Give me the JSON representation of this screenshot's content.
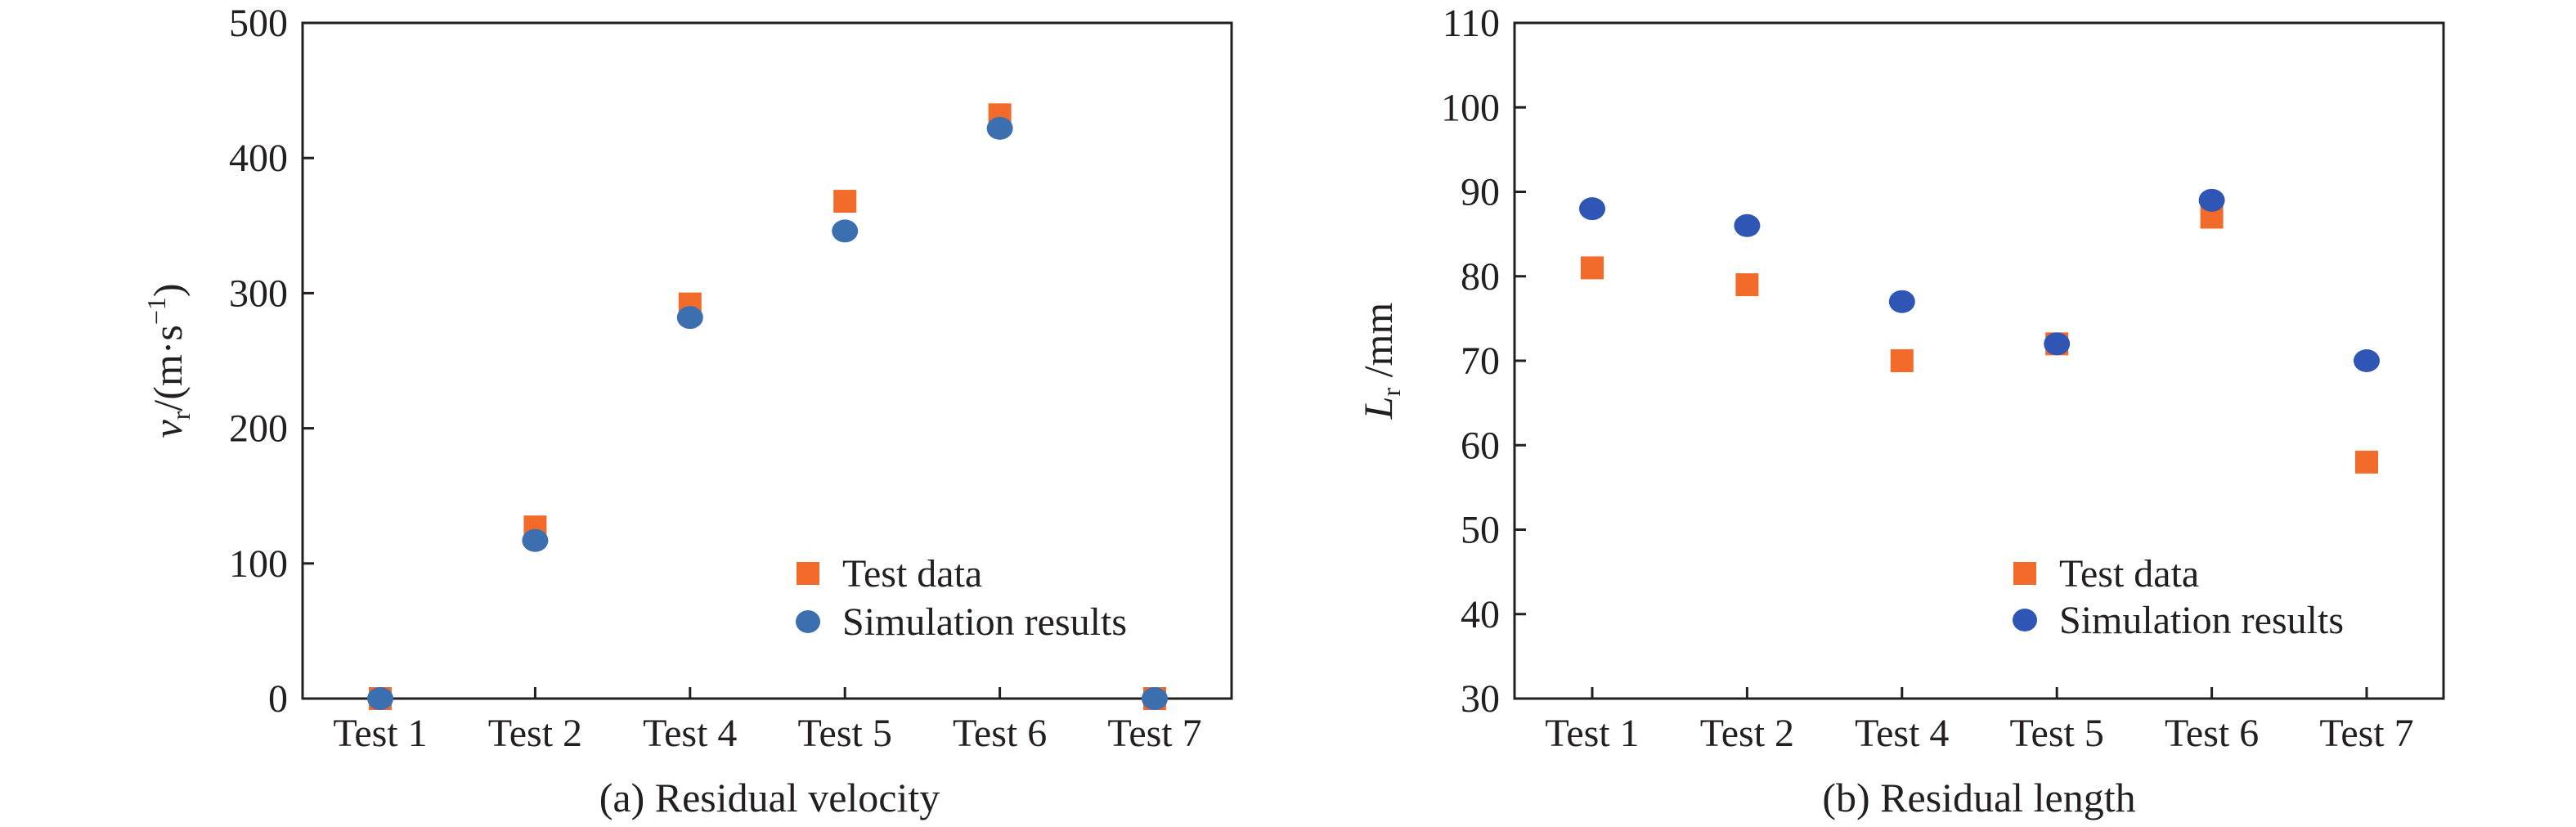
{
  "chart_data": [
    {
      "type": "scatter",
      "categories": [
        "Test 1",
        "Test 2",
        "Test 4",
        "Test 5",
        "Test 6",
        "Test 7"
      ],
      "series": [
        {
          "name": "Test data",
          "marker": "square",
          "color": "#f26b2b",
          "values": [
            0,
            127,
            292,
            368,
            432,
            0
          ]
        },
        {
          "name": "Simulation results",
          "marker": "circle",
          "color": "#3c6fb0",
          "values": [
            0,
            117,
            282,
            346,
            422,
            0
          ]
        }
      ],
      "ylim": [
        0,
        500
      ],
      "yticks": [
        0,
        100,
        200,
        300,
        400,
        500
      ],
      "ylabel": {
        "main": "v",
        "sub": "r",
        "unit": "/(m·s",
        "sup": "−1",
        "close": ")"
      },
      "caption": "(a) Residual velocity",
      "legend_position": "lower-right",
      "grid": false
    },
    {
      "type": "scatter",
      "categories": [
        "Test 1",
        "Test 2",
        "Test 4",
        "Test 5",
        "Test 6",
        "Test 7"
      ],
      "series": [
        {
          "name": "Test data",
          "marker": "square",
          "color": "#f26b2b",
          "values": [
            81,
            79,
            70,
            72,
            87,
            58
          ]
        },
        {
          "name": "Simulation results",
          "marker": "circle",
          "color": "#2f56b4",
          "values": [
            88,
            86,
            77,
            72,
            89,
            70
          ]
        }
      ],
      "ylim": [
        30,
        110
      ],
      "yticks": [
        30,
        40,
        50,
        60,
        70,
        80,
        90,
        100,
        110
      ],
      "ylabel": {
        "main": "L",
        "sub": "r",
        "unit": " /mm"
      },
      "caption": "(b) Residual length",
      "legend_position": "lower-right",
      "grid": false
    }
  ]
}
